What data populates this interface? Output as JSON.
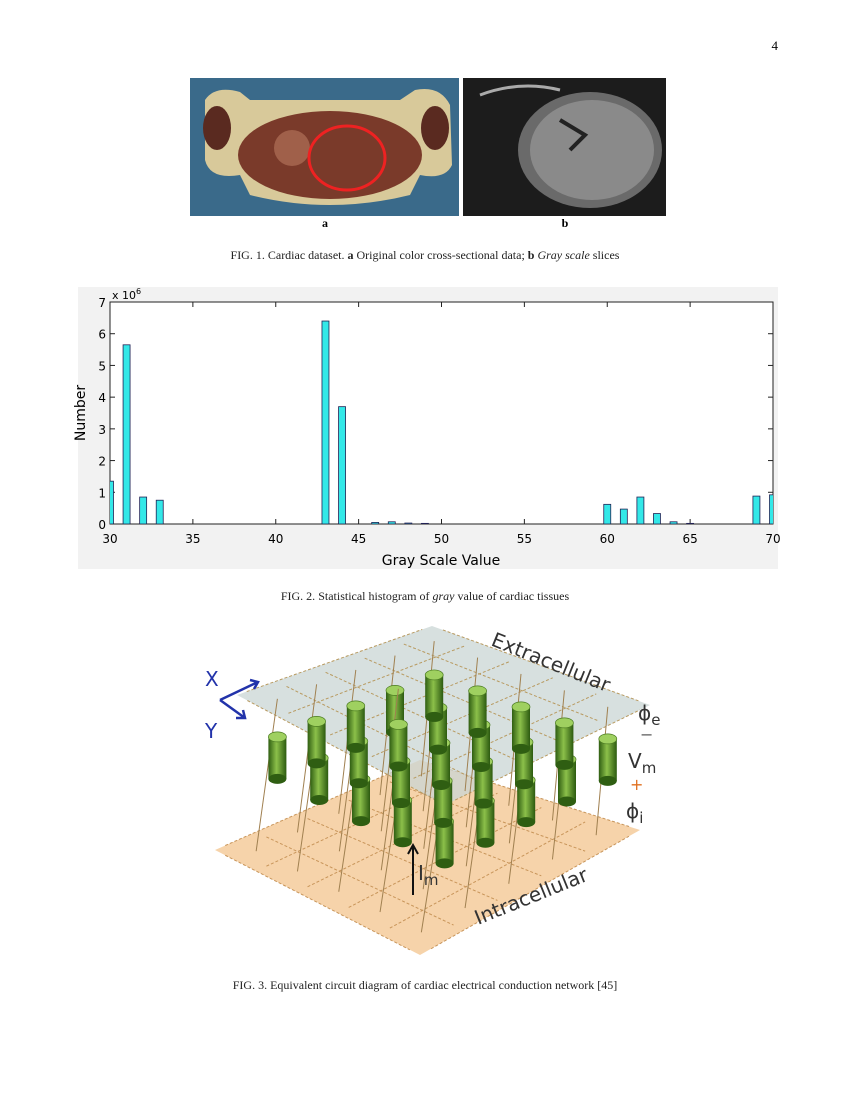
{
  "page_number": "4",
  "figure1": {
    "panel_a": "a",
    "panel_b": "b",
    "caption": {
      "label": "FIG. 1.",
      "parts": [
        "Cardiac dataset.",
        "a",
        "Original color cross-sectional data;",
        "b",
        "Gray scale",
        "slices"
      ]
    }
  },
  "chart_data": {
    "type": "bar",
    "xlabel": "Gray Scale Value",
    "ylabel": "Number",
    "y_multiplier": {
      "base": "x 10",
      "exponent": "6"
    },
    "x": [
      30,
      31,
      32,
      33,
      43,
      44,
      46,
      47,
      48,
      49,
      60,
      61,
      62,
      63,
      64,
      65,
      69,
      70
    ],
    "values": [
      1.35,
      5.65,
      0.85,
      0.75,
      6.4,
      3.7,
      0.05,
      0.07,
      0.03,
      0.02,
      0.62,
      0.47,
      0.85,
      0.33,
      0.07,
      0.02,
      0.88,
      0.92
    ],
    "color": "#33e8e8",
    "xlim": [
      30,
      70
    ],
    "ylim": [
      0,
      7
    ],
    "xticks": [
      30,
      35,
      40,
      45,
      50,
      55,
      60,
      65,
      70
    ],
    "yticks": [
      0,
      1,
      2,
      3,
      4,
      5,
      6,
      7
    ]
  },
  "figure2": {
    "caption": {
      "label": "FIG. 2.",
      "parts": [
        "Statistical histogram of",
        "gray",
        "value of cardiac tissues"
      ]
    }
  },
  "figure3": {
    "labels": {
      "x": "X",
      "y": "Y",
      "extracellular": "Extracellular",
      "intracellular": "Intracellular",
      "phi_e": {
        "base": "ϕ",
        "sub": "e"
      },
      "minus": "−",
      "vm": {
        "base": "V",
        "sub": "m"
      },
      "plus": "+",
      "phi_i": {
        "base": "ϕ",
        "sub": "i"
      },
      "im": {
        "base": "I",
        "sub": "m"
      }
    },
    "caption": {
      "label": "FIG. 3.",
      "text": "Equivalent circuit diagram of cardiac electrical conduction network [45]"
    }
  }
}
